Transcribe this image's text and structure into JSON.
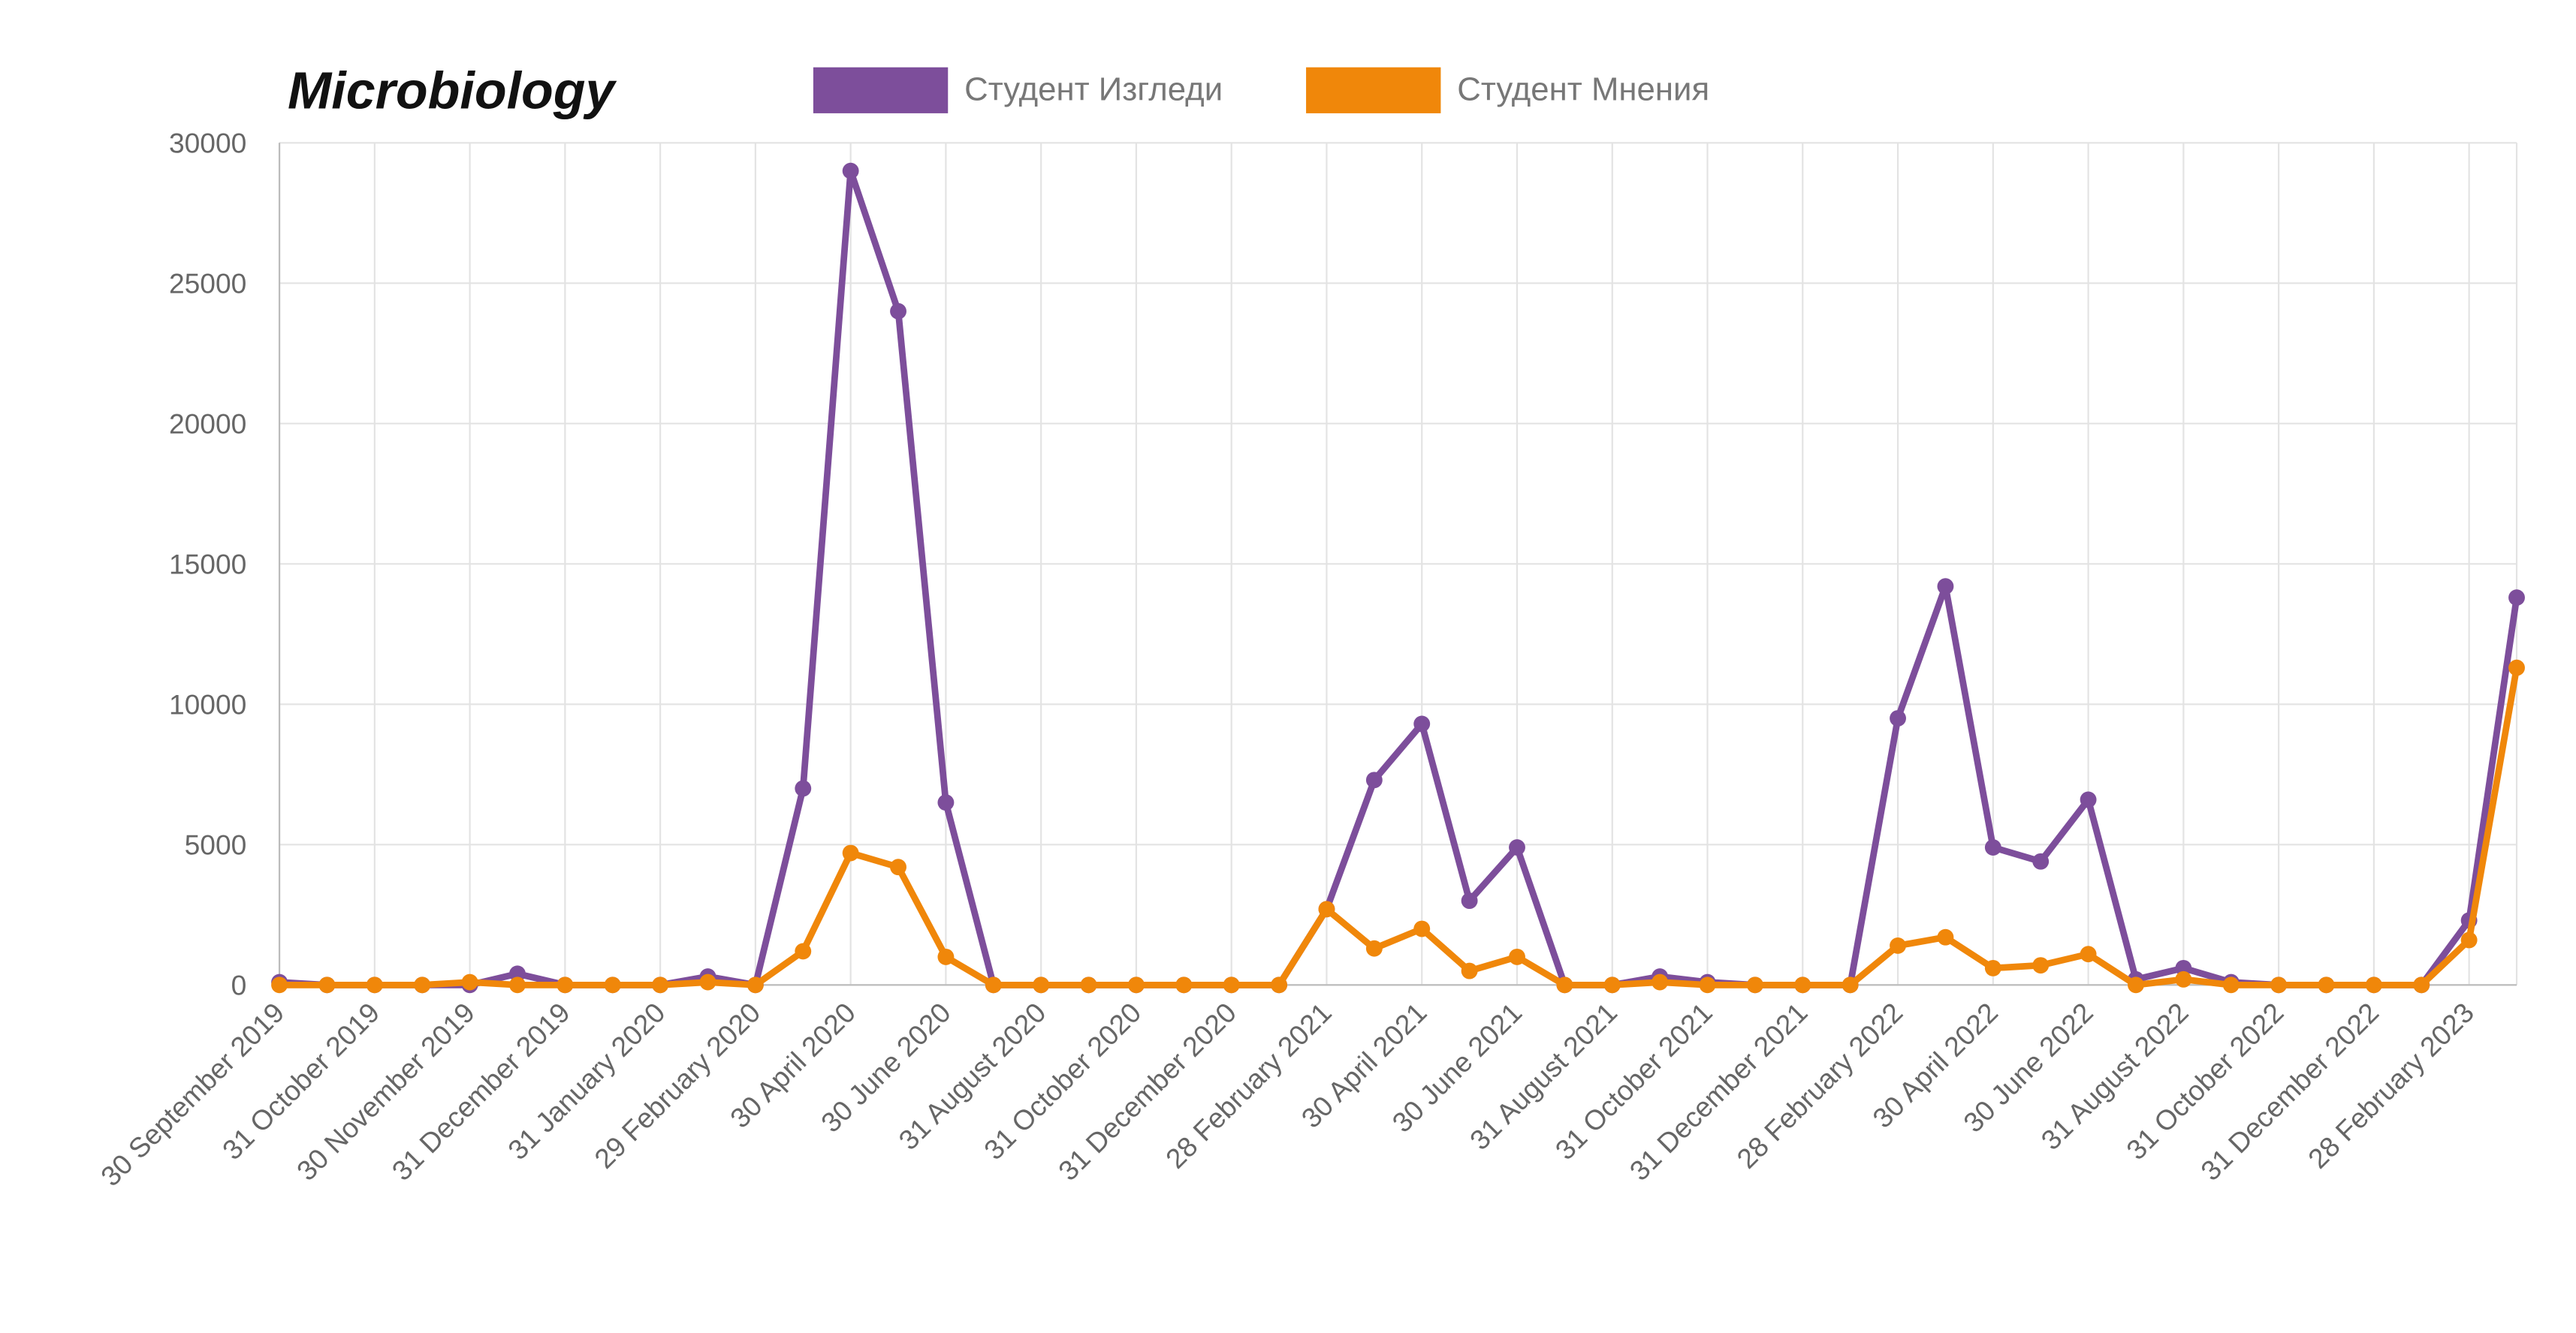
{
  "chart_data": {
    "type": "line",
    "title": "Microbiology",
    "categories": [
      "30 September 2019",
      null,
      "31 October 2019",
      null,
      "30 November 2019",
      null,
      "31 December 2019",
      null,
      "31 January 2020",
      null,
      "29 February 2020",
      null,
      "30 April 2020",
      null,
      "30 June 2020",
      null,
      "31 August 2020",
      null,
      "31 October 2020",
      null,
      "31 December 2020",
      null,
      "28 February 2021",
      null,
      "30 April 2021",
      null,
      "30 June 2021",
      null,
      "31 August 2021",
      null,
      "31 October 2021",
      null,
      "31 December 2021",
      null,
      "28 February 2022",
      null,
      "30 April 2022",
      null,
      "30 June 2022",
      null,
      "31 August 2022",
      null,
      "31 October 2022",
      null,
      "31 December 2022",
      null,
      "28 February 2023",
      null
    ],
    "series": [
      {
        "name": "Студент Изгледи",
        "color": "#7d4e9b",
        "values": [
          100,
          0,
          0,
          0,
          0,
          400,
          0,
          0,
          0,
          300,
          0,
          7000,
          29000,
          24000,
          6500,
          0,
          0,
          0,
          0,
          0,
          0,
          0,
          2700,
          7300,
          9300,
          3000,
          4900,
          0,
          0,
          300,
          100,
          0,
          0,
          0,
          9500,
          14200,
          4900,
          4400,
          6600,
          200,
          600,
          100,
          0,
          0,
          0,
          0,
          2300,
          13800
        ]
      },
      {
        "name": "Студент Мнения",
        "color": "#f0870a",
        "values": [
          0,
          0,
          0,
          0,
          100,
          0,
          0,
          0,
          0,
          100,
          0,
          1200,
          4700,
          4200,
          1000,
          0,
          0,
          0,
          0,
          0,
          0,
          0,
          2700,
          1300,
          2000,
          500,
          1000,
          0,
          0,
          100,
          0,
          0,
          0,
          0,
          1400,
          1700,
          600,
          700,
          1100,
          0,
          200,
          0,
          0,
          0,
          0,
          0,
          1600,
          11300
        ]
      }
    ],
    "ylim": [
      0,
      30000
    ],
    "yticks": [
      0,
      5000,
      10000,
      15000,
      20000,
      25000,
      30000
    ],
    "grid": true
  }
}
